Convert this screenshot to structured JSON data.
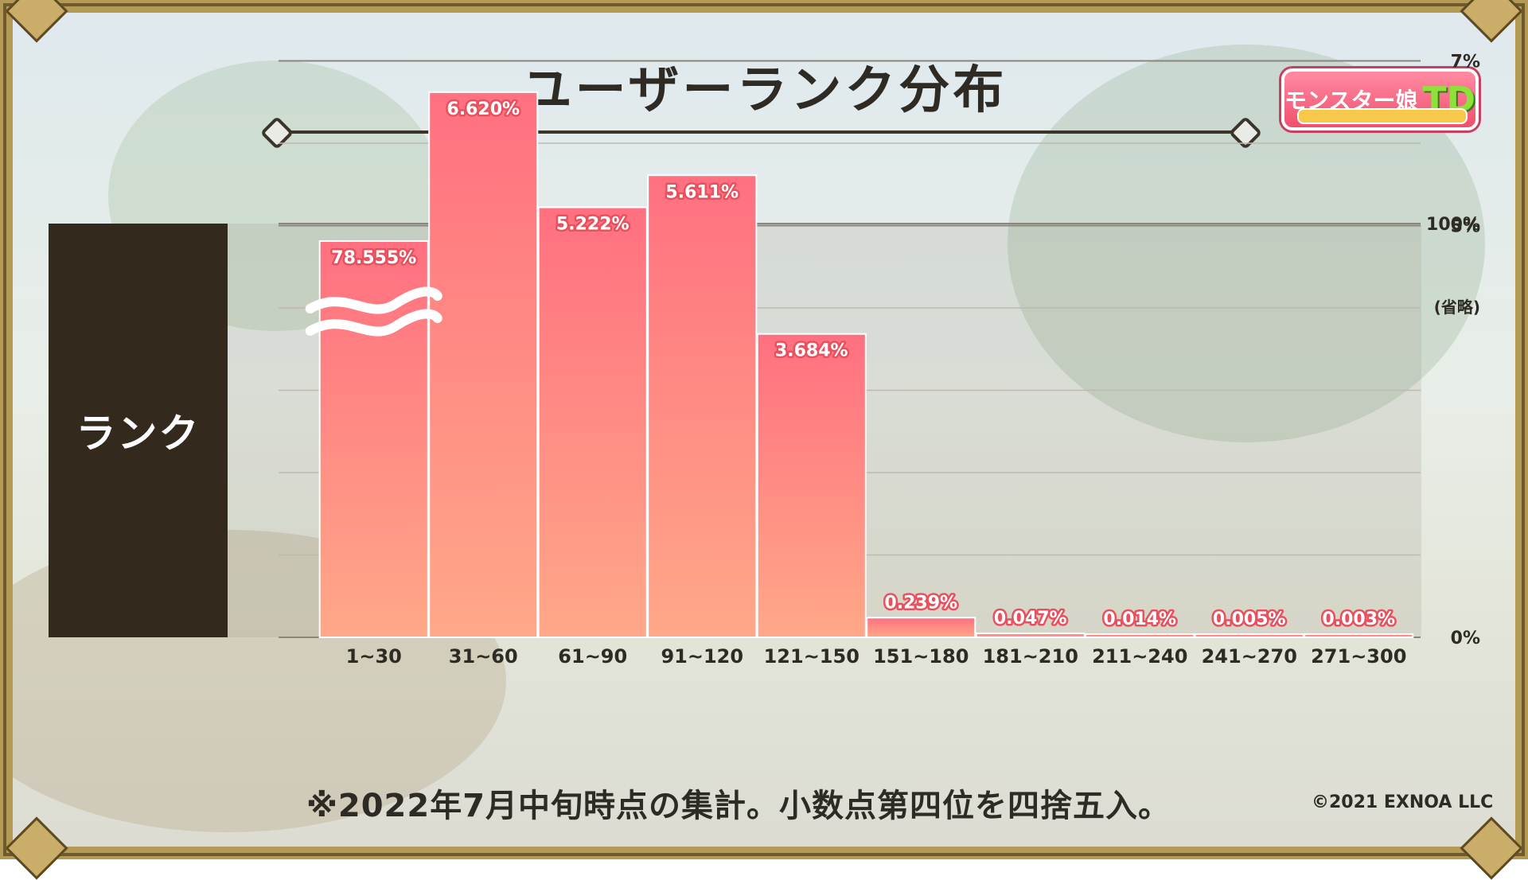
{
  "title": "ユーザーランク分布",
  "logo": {
    "text": "モンスター娘",
    "td": "TD"
  },
  "side_label": "ランク",
  "footnote": "※2022年7月中旬時点の集計。小数点第四位を四捨五入。",
  "copyright": "©2021 EXNOA LLC",
  "colors": {
    "bar_top": "#ff7080",
    "bar_bottom": "#ffa888",
    "label": "#ffffff",
    "label_outline": "#e8505e",
    "panel": "#33291d"
  },
  "chart_data": {
    "type": "bar",
    "categories": [
      "1~30",
      "31~60",
      "61~90",
      "91~120",
      "121~150",
      "151~180",
      "181~210",
      "211~240",
      "241~270",
      "271~300"
    ],
    "values": [
      78.555,
      6.62,
      5.222,
      5.611,
      3.684,
      0.239,
      0.047,
      0.014,
      0.005,
      0.003
    ],
    "value_labels": [
      "78.555%",
      "6.620%",
      "5.222%",
      "5.611%",
      "3.684%",
      "0.239%",
      "0.047%",
      "0.014%",
      "0.005%",
      "0.003%"
    ],
    "y_ticks": [
      "100%",
      "(省略)",
      "7%",
      "5%",
      "0%"
    ],
    "axis_break": {
      "between": "7%",
      "and": "100%"
    },
    "ylim": [
      0,
      100
    ],
    "grid": true,
    "xlabel": "",
    "ylabel": "ランク"
  }
}
